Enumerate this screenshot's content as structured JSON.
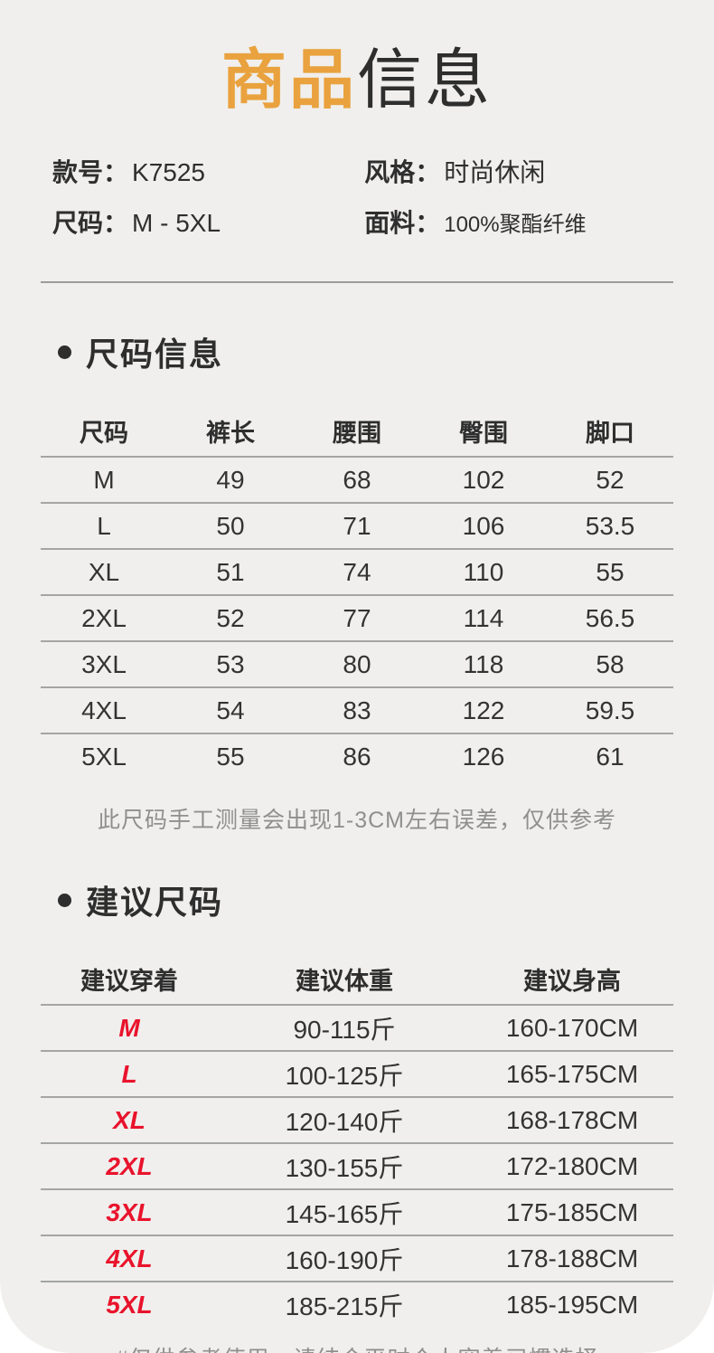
{
  "page": {
    "title_highlight": "商品",
    "title_rest": "信息"
  },
  "product_info": {
    "fields": [
      {
        "label": "款号：",
        "value": "K7525"
      },
      {
        "label": "尺码：",
        "value": "M - 5XL"
      },
      {
        "label": "风格：",
        "value": "时尚休闲"
      },
      {
        "label": "面料：",
        "value": "100%聚酯纤维"
      }
    ]
  },
  "size_section": {
    "title": "尺码信息",
    "table": {
      "headers": [
        "尺码",
        "裤长",
        "腰围",
        "臀围",
        "脚口"
      ],
      "rows": [
        [
          "M",
          "49",
          "68",
          "102",
          "52"
        ],
        [
          "L",
          "50",
          "71",
          "106",
          "53.5"
        ],
        [
          "XL",
          "51",
          "74",
          "110",
          "55"
        ],
        [
          "2XL",
          "52",
          "77",
          "114",
          "56.5"
        ],
        [
          "3XL",
          "53",
          "80",
          "118",
          "58"
        ],
        [
          "4XL",
          "54",
          "83",
          "122",
          "59.5"
        ],
        [
          "5XL",
          "55",
          "86",
          "126",
          "61"
        ]
      ]
    },
    "note": "此尺码手工测量会出现1-3CM左右误差，仅供参考"
  },
  "suggest_section": {
    "title": "建议尺码",
    "table": {
      "headers": [
        "建议穿着",
        "建议体重",
        "建议身高"
      ],
      "rows": [
        [
          "M",
          "90-115斤",
          "160-170CM"
        ],
        [
          "L",
          "100-125斤",
          "165-175CM"
        ],
        [
          "XL",
          "120-140斤",
          "168-178CM"
        ],
        [
          "2XL",
          "130-155斤",
          "172-180CM"
        ],
        [
          "3XL",
          "145-165斤",
          "175-185CM"
        ],
        [
          "4XL",
          "160-190斤",
          "178-188CM"
        ],
        [
          "5XL",
          "185-215斤",
          "185-195CM"
        ]
      ]
    },
    "note": "#仅供参考使用，请结合平时个人穿着习惯选择"
  },
  "colors": {
    "accent_orange": "#E9A23E",
    "accent_red": "#E9132C",
    "panel_bg": "#F0EFED",
    "line_gray": "#9C9C9C",
    "note_gray": "#8F8F8F",
    "text_dark": "#2E2E2E"
  }
}
